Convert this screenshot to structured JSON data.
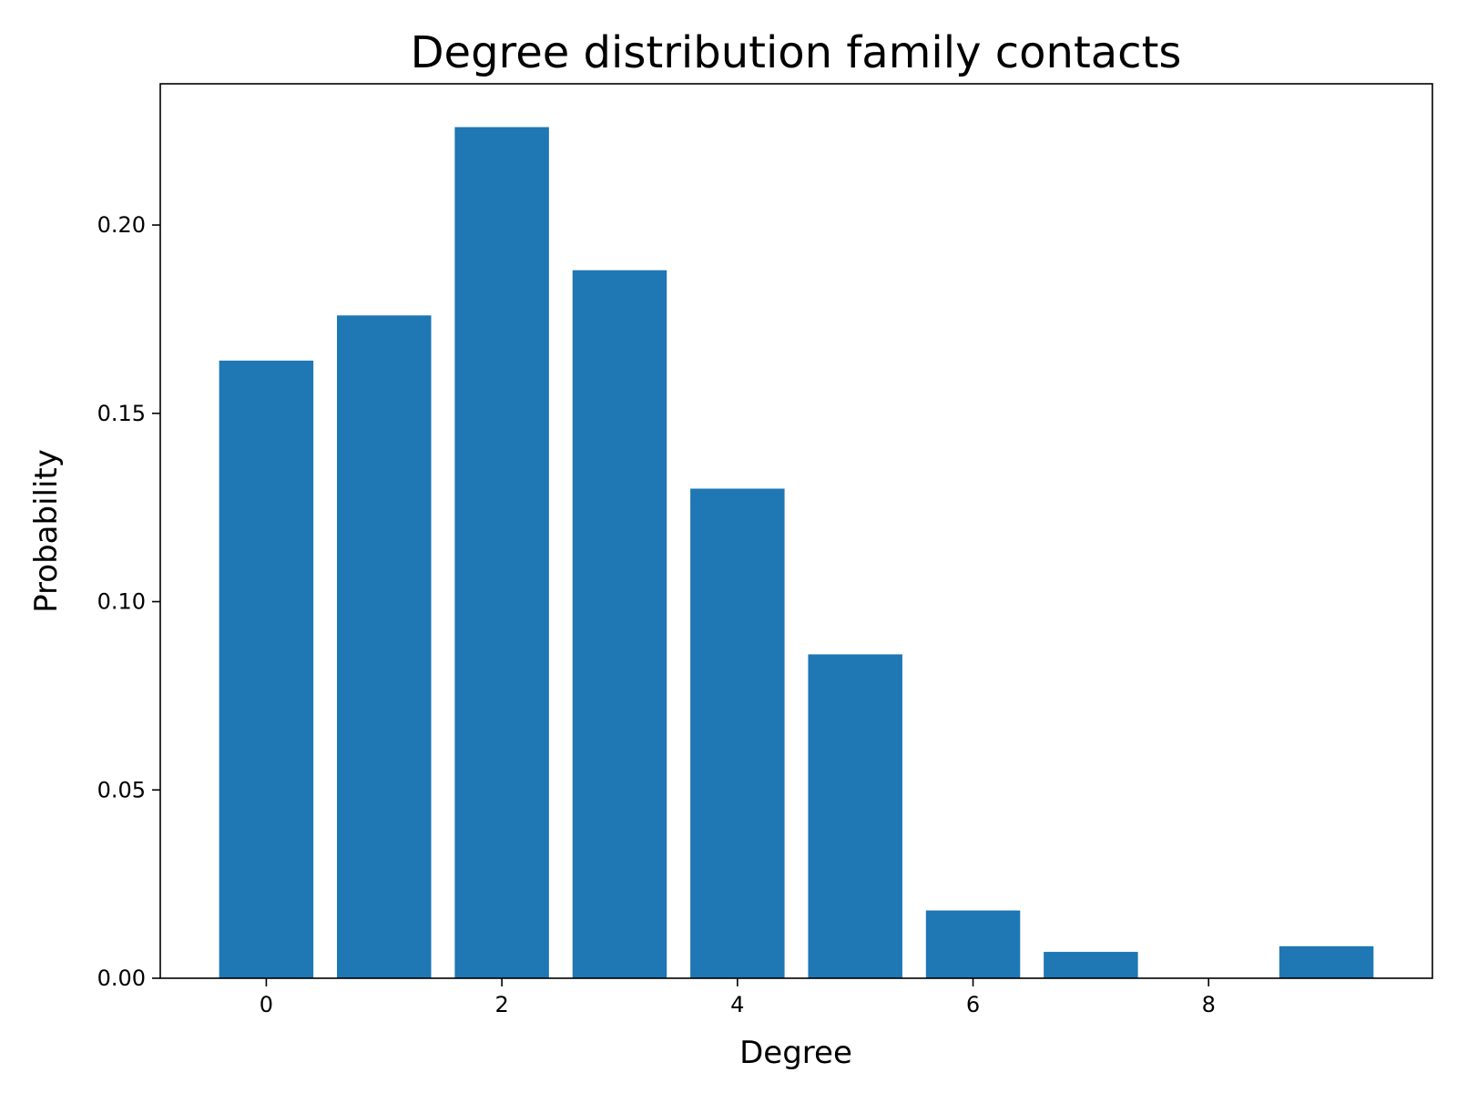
{
  "chart_data": {
    "type": "bar",
    "title": "Degree distribution family contacts",
    "xlabel": "Degree",
    "ylabel": "Probability",
    "x": [
      0,
      1,
      2,
      3,
      4,
      5,
      6,
      7,
      8,
      9
    ],
    "values": [
      0.164,
      0.176,
      0.226,
      0.188,
      0.13,
      0.086,
      0.018,
      0.007,
      0.0,
      0.0085
    ],
    "xlim": [
      -0.9,
      9.9
    ],
    "ylim": [
      0,
      0.2375
    ],
    "xticks": [
      0,
      2,
      4,
      6,
      8
    ],
    "xtick_labels": [
      "0",
      "2",
      "4",
      "6",
      "8"
    ],
    "yticks": [
      0,
      0.05,
      0.1,
      0.15,
      0.2
    ],
    "ytick_labels": [
      "0.00",
      "0.05",
      "0.10",
      "0.15",
      "0.20"
    ],
    "bar_color": "#1f77b4",
    "grid": false,
    "legend": "none"
  }
}
